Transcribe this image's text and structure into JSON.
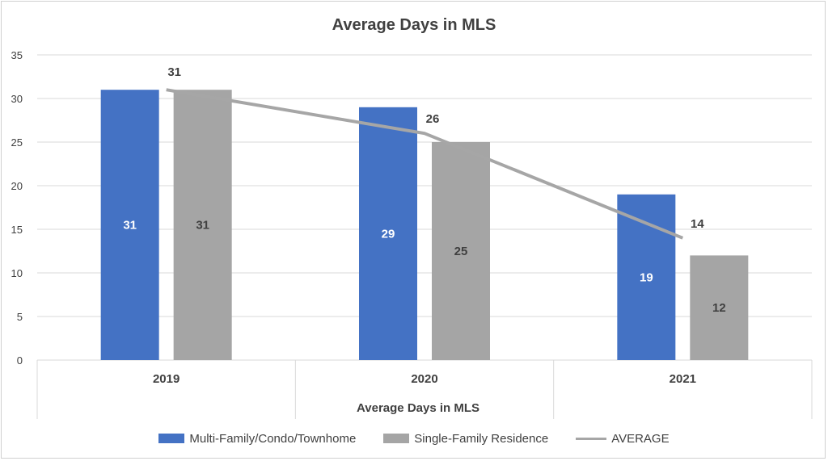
{
  "chart_data": {
    "type": "bar",
    "title": "Average Days in MLS",
    "xlabel": "Average Days in MLS",
    "ylabel": "",
    "categories": [
      "2019",
      "2020",
      "2021"
    ],
    "ylim": [
      0,
      35
    ],
    "yticks": [
      0,
      5,
      10,
      15,
      20,
      25,
      30,
      35
    ],
    "grid": true,
    "legend_position": "bottom",
    "series": [
      {
        "name": "Multi-Family/Condo/Townhome",
        "kind": "bar",
        "color": "#4472c4",
        "values": [
          31,
          29,
          19
        ]
      },
      {
        "name": "Single-Family Residence",
        "kind": "bar",
        "color": "#a5a5a5",
        "values": [
          31,
          25,
          12
        ]
      },
      {
        "name": "AVERAGE",
        "kind": "line",
        "color": "#a6a6a6",
        "values": [
          31,
          26,
          14
        ]
      }
    ]
  }
}
